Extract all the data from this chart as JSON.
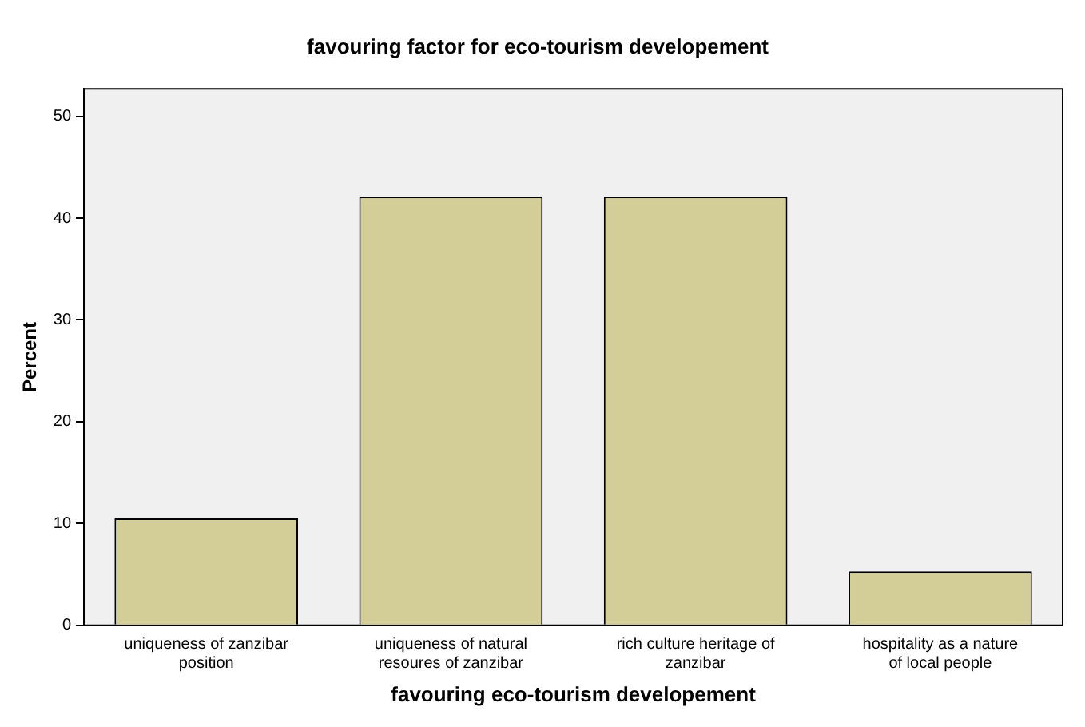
{
  "chart_data": {
    "type": "bar",
    "title": "favouring factor for eco-tourism developement",
    "xlabel": "favouring eco-tourism developement",
    "ylabel": "Percent",
    "categories": [
      "uniqueness of zanzibar position",
      "uniqueness of natural resoures of zanzibar",
      "rich culture heritage of zanzibar",
      "hospitality as a nature of local people"
    ],
    "values": [
      10.5,
      42.1,
      42.1,
      5.3
    ],
    "color": "#d3ce97",
    "ylim": [
      0,
      52.7
    ],
    "yticks": [
      0,
      10,
      20,
      30,
      40,
      50
    ],
    "grid": false,
    "legend": false
  }
}
